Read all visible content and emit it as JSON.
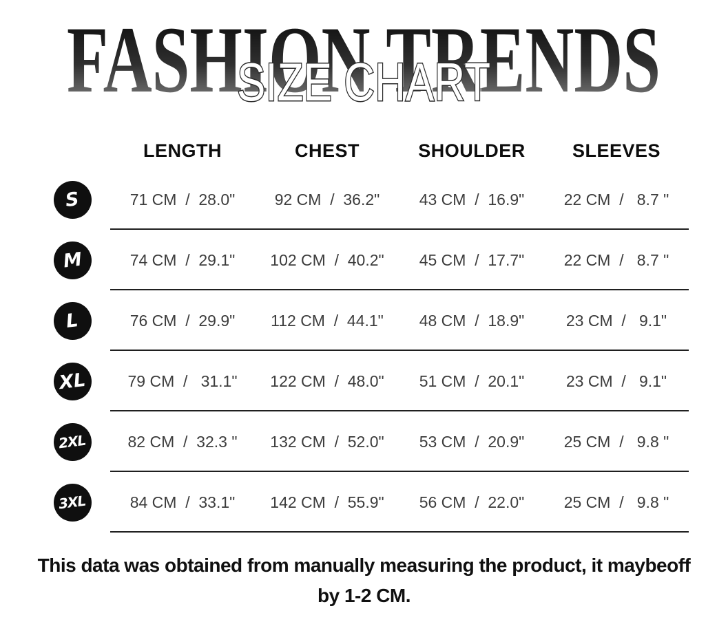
{
  "header": {
    "brand_title": "FASHION TRENDS",
    "subtitle": "SIZE CHART"
  },
  "table": {
    "columns": [
      "LENGTH",
      "CHEST",
      "SHOULDER",
      "SLEEVES"
    ],
    "rows": [
      {
        "size": "S",
        "length": "71 CM  /  28.0\"",
        "chest": "92 CM  /  36.2\"",
        "shoulder": "43 CM  /  16.9\"",
        "sleeves": "22 CM  /   8.7 \""
      },
      {
        "size": "M",
        "length": "74 CM  /  29.1\"",
        "chest": "102 CM  /  40.2\"",
        "shoulder": "45 CM  /  17.7\"",
        "sleeves": "22 CM  /   8.7 \""
      },
      {
        "size": "L",
        "length": "76 CM  /  29.9\"",
        "chest": "112 CM  /  44.1\"",
        "shoulder": "48 CM  /  18.9\"",
        "sleeves": "23 CM  /   9.1\""
      },
      {
        "size": "XL",
        "length": "79 CM  /   31.1\"",
        "chest": "122 CM  /  48.0\"",
        "shoulder": "51 CM  /  20.1\"",
        "sleeves": "23 CM  /   9.1\""
      },
      {
        "size": "2XL",
        "length": "82 CM  /  32.3 \"",
        "chest": "132 CM  /  52.0\"",
        "shoulder": "53 CM  /  20.9\"",
        "sleeves": "25 CM  /   9.8 \""
      },
      {
        "size": "3XL",
        "length": "84 CM  /  33.1\"",
        "chest": "142 CM  /  55.9\"",
        "shoulder": "56 CM  /  22.0\"",
        "sleeves": "25 CM  /   9.8 \""
      }
    ]
  },
  "footer": {
    "lines": [
      "This data was obtained from manually measuring the product, it maybeoff",
      "by 1-2 CM."
    ]
  },
  "colors": {
    "badge_background": "#0f0f0f",
    "title_gradient_top": "#050505",
    "title_gradient_bottom": "#8e8e8e",
    "divider": "#1f1f1f",
    "body_text": "#3c3c3c"
  }
}
